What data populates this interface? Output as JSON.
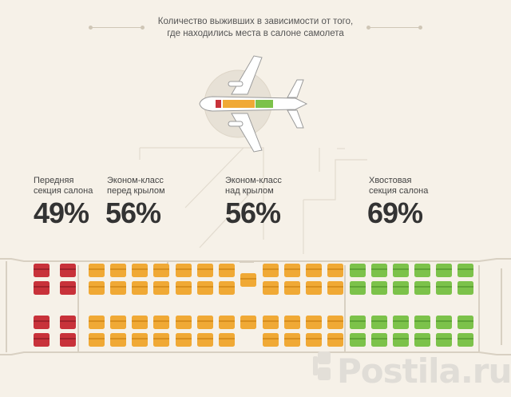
{
  "title": {
    "line1": "Количество выживших в зависимости от того,",
    "line2": "где находились места в салоне самолета"
  },
  "colors": {
    "background": "#f6f1e8",
    "front": "#c8323a",
    "economy": "#f0a935",
    "tail": "#7cc24a",
    "outline": "#d8d0c2"
  },
  "sections": [
    {
      "label1": "Передняя",
      "label2": "секция салона",
      "percent": "49%",
      "survival": 0.49,
      "color": "red"
    },
    {
      "label1": "Эконом-класс",
      "label2": "перед крылом",
      "percent": "56%",
      "survival": 0.56,
      "color": "orange"
    },
    {
      "label1": "Эконом-класс",
      "label2": "над крылом",
      "percent": "56%",
      "survival": 0.56,
      "color": "orange"
    },
    {
      "label1": "Хвостовая",
      "label2": "секция салона",
      "percent": "69%",
      "survival": 0.69,
      "color": "green"
    }
  ],
  "icons": [
    "airplane-icon",
    "seat-icon"
  ],
  "watermark": "Postila.ru"
}
